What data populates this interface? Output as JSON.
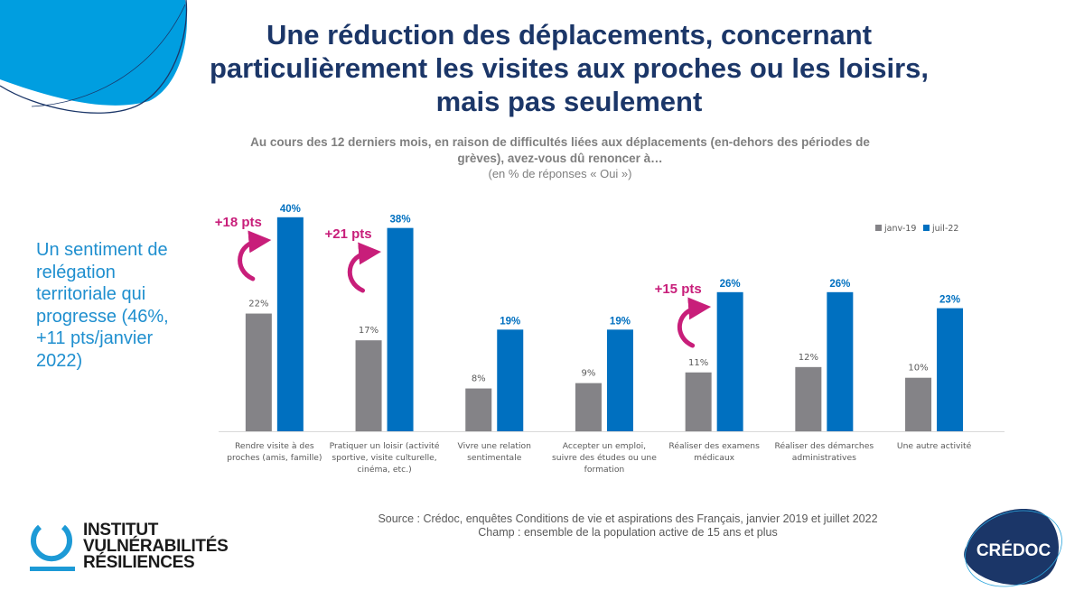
{
  "slide": {
    "title": "Une réduction des déplacements, concernant particulièrement les visites aux proches ou les loisirs, mais pas seulement",
    "side_note": "Un sentiment de relégation territoriale qui progresse (46%, +11 pts/janvier 2022)",
    "source_line1": "Source : Crédoc, enquêtes Conditions de vie et aspirations des Français, janvier 2019 et juillet 2022",
    "source_line2": "Champ : ensemble de la population active de 15 ans et plus",
    "logo_left_lines": [
      "INSTITUT",
      "VULNÉRABILITÉS",
      "RÉSILIENCES"
    ],
    "logo_right": "CRÉDOC",
    "colors": {
      "title": "#1b3668",
      "accent_blue": "#0070c0",
      "grey": "#848387",
      "annotation": "#c81e7a",
      "side_text": "#1f8fcf"
    }
  },
  "chart_data": {
    "type": "bar",
    "title": "Au cours des 12 derniers mois, en raison de difficultés liées aux déplacements (en-dehors des périodes de grèves), avez-vous dû renoncer à…",
    "subtitle": "(en % de réponses « Oui »)",
    "xlabel": "",
    "ylabel": "",
    "ylim": [
      0,
      40
    ],
    "grid": false,
    "legend_position": "top-right",
    "categories": [
      [
        "Rendre visite à des",
        "proches (amis, famille)"
      ],
      [
        "Pratiquer un loisir (activité",
        "sportive, visite culturelle,",
        "cinéma, etc.)"
      ],
      [
        "Vivre une relation",
        "sentimentale"
      ],
      [
        "Accepter un emploi,",
        "suivre des études ou une",
        "formation"
      ],
      [
        "Réaliser des examens",
        "médicaux"
      ],
      [
        "Réaliser des démarches",
        "administratives"
      ],
      [
        "Une autre activité"
      ]
    ],
    "series": [
      {
        "name": "janv-19",
        "color": "#848387",
        "values": [
          22,
          17,
          8,
          9,
          11,
          12,
          10
        ],
        "labels": [
          "22%",
          "17%",
          "8%",
          "9%",
          "11%",
          "12%",
          "10%"
        ]
      },
      {
        "name": "juil-22",
        "color": "#0070c0",
        "values": [
          40,
          38,
          19,
          19,
          26,
          26,
          23
        ],
        "labels": [
          "40%",
          "38%",
          "19%",
          "19%",
          "26%",
          "26%",
          "23%"
        ]
      }
    ],
    "annotations": [
      {
        "category_index": 0,
        "text": "+18 pts"
      },
      {
        "category_index": 1,
        "text": "+21 pts"
      },
      {
        "category_index": 4,
        "text": "+15 pts"
      }
    ]
  }
}
